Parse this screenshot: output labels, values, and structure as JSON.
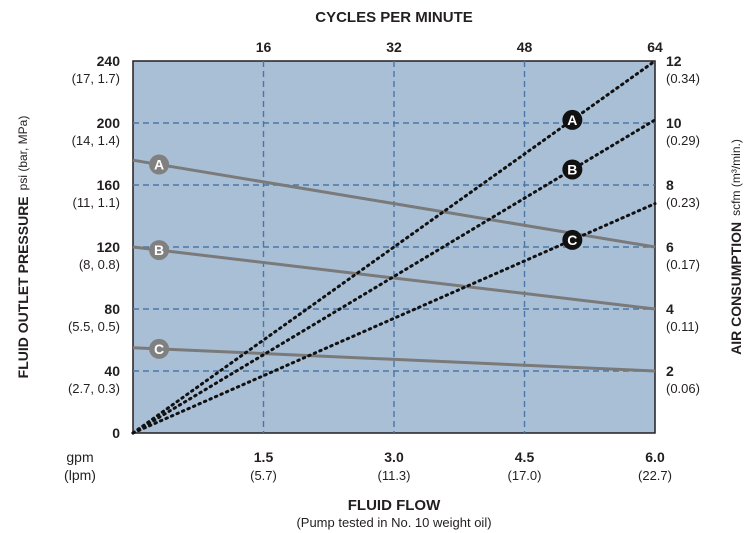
{
  "chart_data": {
    "type": "line",
    "top_axis": {
      "label": "CYCLES PER MINUTE",
      "ticks": [
        "16",
        "32",
        "48",
        "64"
      ],
      "range": [
        0,
        64
      ]
    },
    "bottom_axis": {
      "label": "FLUID FLOW",
      "sublabel": "(Pump tested in No. 10 weight oil)",
      "unit_primary": "gpm",
      "unit_secondary": "(lpm)",
      "range": [
        0,
        6.0
      ],
      "ticks": [
        {
          "value": 1.5,
          "label": "1.5",
          "sub": "(5.7)"
        },
        {
          "value": 3.0,
          "label": "3.0",
          "sub": "(11.3)"
        },
        {
          "value": 4.5,
          "label": "4.5",
          "sub": "(17.0)"
        },
        {
          "value": 6.0,
          "label": "6.0",
          "sub": "(22.7)"
        }
      ]
    },
    "left_axis": {
      "label": "FLUID OUTLET PRESSURE",
      "unit": "psi (bar, MPa)",
      "range": [
        0,
        240
      ],
      "ticks": [
        {
          "value": 0,
          "label": "0",
          "sub": ""
        },
        {
          "value": 40,
          "label": "40",
          "sub": "(2.7, 0.3)"
        },
        {
          "value": 80,
          "label": "80",
          "sub": "(5.5, 0.5)"
        },
        {
          "value": 120,
          "label": "120",
          "sub": "(8, 0.8)"
        },
        {
          "value": 160,
          "label": "160",
          "sub": "(11, 1.1)"
        },
        {
          "value": 200,
          "label": "200",
          "sub": "(14, 1.4)"
        },
        {
          "value": 240,
          "label": "240",
          "sub": "(17, 1.7)"
        }
      ]
    },
    "right_axis": {
      "label": "AIR CONSUMPTION",
      "unit": "scfm (m³/min.)",
      "range": [
        0,
        12
      ],
      "ticks": [
        {
          "value": 2,
          "label": "2",
          "sub": "(0.06)"
        },
        {
          "value": 4,
          "label": "4",
          "sub": "(0.11)"
        },
        {
          "value": 6,
          "label": "6",
          "sub": "(0.17)"
        },
        {
          "value": 8,
          "label": "8",
          "sub": "(0.23)"
        },
        {
          "value": 10,
          "label": "10",
          "sub": "(0.29)"
        },
        {
          "value": 12,
          "label": "12",
          "sub": "(0.34)"
        }
      ]
    },
    "grid": true,
    "pressure_curves": [
      {
        "name": "A",
        "x": [
          0,
          6.0
        ],
        "y": [
          176,
          120
        ],
        "marker_x": 0.3
      },
      {
        "name": "B",
        "x": [
          0,
          6.0
        ],
        "y": [
          120,
          80
        ],
        "marker_x": 0.3
      },
      {
        "name": "C",
        "x": [
          0,
          6.0
        ],
        "y": [
          55,
          40
        ],
        "marker_x": 0.3
      }
    ],
    "air_curves": [
      {
        "name": "A",
        "x": [
          0,
          6.0
        ],
        "y": [
          0,
          12
        ],
        "marker_x": 5.05
      },
      {
        "name": "B",
        "x": [
          0,
          6.0
        ],
        "y": [
          0,
          10.1
        ],
        "marker_x": 5.05
      },
      {
        "name": "C",
        "x": [
          0,
          6.0
        ],
        "y": [
          0,
          7.4
        ],
        "marker_x": 5.05
      }
    ],
    "colors": {
      "plot_bg": "#a9bfd6",
      "grid": "#4a76a8",
      "pressure_line": "#7a7a7a",
      "pressure_marker": "#808080",
      "air_line": "#111111",
      "air_marker": "#111111",
      "text": "#231f20"
    }
  }
}
